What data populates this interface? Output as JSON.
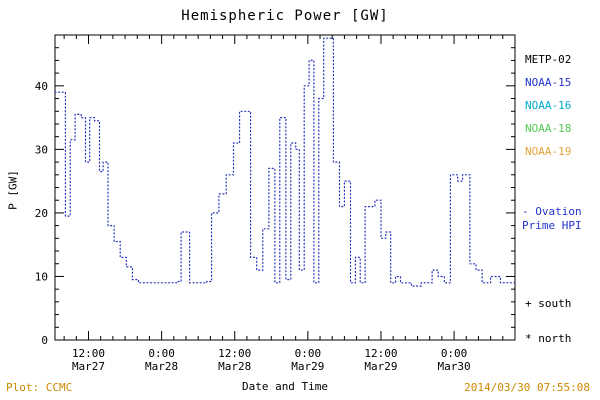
{
  "title": "Hemispheric Power [GW]",
  "axes": {
    "ylabel": "P [GW]",
    "xlabel": "Date and Time"
  },
  "legend": {
    "satellites": [
      {
        "label": "METP-02",
        "color": "#000000"
      },
      {
        "label": "NOAA-15",
        "color": "#2233cc"
      },
      {
        "label": "NOAA-16",
        "color": "#00aacc"
      },
      {
        "label": "NOAA-18",
        "color": "#55cc55"
      },
      {
        "label": "NOAA-19",
        "color": "#e6a23c"
      }
    ],
    "line_entry": {
      "line1": "- Ovation",
      "line2": "Prime HPI",
      "color": "#2233cc"
    },
    "markers": [
      {
        "label": "+ south"
      },
      {
        "label": "* north"
      }
    ]
  },
  "footer": {
    "plot_credit": "Plot: CCMC",
    "timestamp": "2014/03/30 07:55:08",
    "color": "#cc8800"
  },
  "chart_data": {
    "type": "line",
    "style": "dotted-step",
    "line_color": "#2233bb",
    "title": "Hemispheric Power [GW]",
    "xlabel": "Date and Time",
    "ylabel": "P [GW]",
    "grid": false,
    "legend_position": "right",
    "xlim_hours_from_mar27_0000": [
      6.5,
      82
    ],
    "ylim": [
      0,
      48
    ],
    "yticks": [
      0,
      10,
      20,
      30,
      40
    ],
    "xticks": [
      {
        "hour": 12,
        "time": "12:00",
        "date": "Mar27"
      },
      {
        "hour": 24,
        "time": "0:00",
        "date": "Mar28"
      },
      {
        "hour": 36,
        "time": "12:00",
        "date": "Mar28"
      },
      {
        "hour": 48,
        "time": "0:00",
        "date": "Mar29"
      },
      {
        "hour": 60,
        "time": "12:00",
        "date": "Mar29"
      },
      {
        "hour": 72,
        "time": "0:00",
        "date": "Mar30"
      }
    ],
    "series": [
      {
        "name": "Ovation Prime HPI",
        "end_hour": 82,
        "steps_hour_value": [
          [
            6.5,
            39
          ],
          [
            8.2,
            19.5
          ],
          [
            9,
            31.5
          ],
          [
            9.8,
            35.5
          ],
          [
            10.8,
            35
          ],
          [
            11.5,
            28
          ],
          [
            12.2,
            35
          ],
          [
            13,
            34.5
          ],
          [
            13.8,
            26.5
          ],
          [
            14.4,
            28
          ],
          [
            15.2,
            18
          ],
          [
            16.2,
            15.5
          ],
          [
            17.2,
            13
          ],
          [
            18.2,
            11.5
          ],
          [
            19.2,
            9.5
          ],
          [
            20.2,
            9
          ],
          [
            26.6,
            9.2
          ],
          [
            27.2,
            17
          ],
          [
            28.6,
            9
          ],
          [
            31.4,
            9.2
          ],
          [
            32.2,
            20
          ],
          [
            33.4,
            23
          ],
          [
            34.6,
            26
          ],
          [
            35.8,
            31
          ],
          [
            36.8,
            36
          ],
          [
            38.6,
            13
          ],
          [
            39.6,
            11
          ],
          [
            40.6,
            17.5
          ],
          [
            41.6,
            27
          ],
          [
            42.6,
            9
          ],
          [
            43.4,
            35
          ],
          [
            44.4,
            9.5
          ],
          [
            45.2,
            31
          ],
          [
            46,
            30
          ],
          [
            46.6,
            11
          ],
          [
            47.4,
            40
          ],
          [
            48.2,
            44
          ],
          [
            49,
            9
          ],
          [
            49.8,
            38
          ],
          [
            50.6,
            47.5
          ],
          [
            52.2,
            28
          ],
          [
            53.2,
            21
          ],
          [
            54,
            25
          ],
          [
            55,
            9
          ],
          [
            55.8,
            13
          ],
          [
            56.6,
            9
          ],
          [
            57.4,
            21
          ],
          [
            59,
            22
          ],
          [
            60,
            16
          ],
          [
            60.8,
            17
          ],
          [
            61.6,
            9
          ],
          [
            62.4,
            10
          ],
          [
            63.2,
            9
          ],
          [
            65,
            8.5
          ],
          [
            66.6,
            9
          ],
          [
            68.4,
            11
          ],
          [
            69.4,
            10
          ],
          [
            70.4,
            9
          ],
          [
            71.4,
            26
          ],
          [
            72.6,
            25
          ],
          [
            73.4,
            26
          ],
          [
            74.6,
            12
          ],
          [
            75.6,
            11
          ],
          [
            76.6,
            9
          ],
          [
            78,
            10
          ],
          [
            79.6,
            9
          ]
        ]
      }
    ]
  }
}
